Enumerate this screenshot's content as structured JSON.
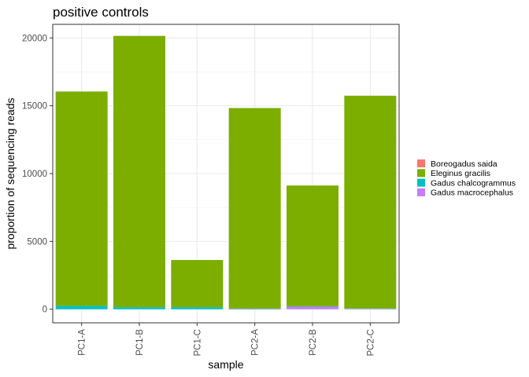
{
  "chart_data": {
    "type": "bar",
    "stacked": true,
    "title": "positive controls",
    "xlabel": "sample",
    "ylabel": "proportion of sequencing reads",
    "ylim": [
      -1000,
      21000
    ],
    "yticks": [
      0,
      5000,
      10000,
      15000,
      20000
    ],
    "grid": true,
    "legend_position": "right",
    "categories": [
      "PC1-A",
      "PC1-B",
      "PC1-C",
      "PC2-A",
      "PC2-B",
      "PC2-C"
    ],
    "series": [
      {
        "name": "Boreogadus saida",
        "color": "#F8766D",
        "values": [
          0,
          0,
          0,
          0,
          0,
          0
        ]
      },
      {
        "name": "Eleginus gracilis",
        "color": "#7CAE00",
        "values": [
          15800,
          20000,
          3480,
          14780,
          8900,
          15680
        ]
      },
      {
        "name": "Gadus chalcogrammus",
        "color": "#00BFC4",
        "values": [
          250,
          150,
          150,
          30,
          20,
          30
        ]
      },
      {
        "name": "Gadus macrocephalus",
        "color": "#C77CFF",
        "values": [
          0,
          0,
          0,
          20,
          200,
          30
        ]
      }
    ]
  }
}
